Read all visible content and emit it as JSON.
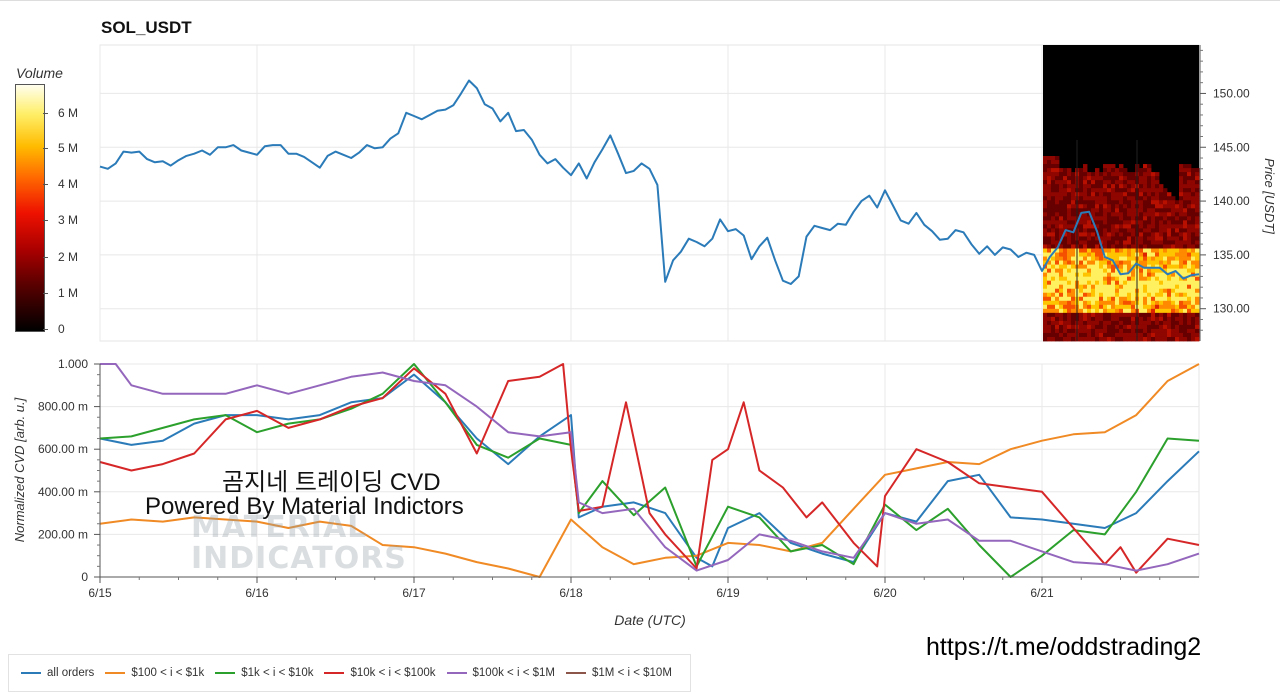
{
  "title": "SOL_USDT",
  "colorbar": {
    "label": "Volume",
    "ticks": [
      "6 M",
      "5 M",
      "4 M",
      "3 M",
      "2 M",
      "1 M",
      "0"
    ]
  },
  "watermark": {
    "line1": "곰지네 트레이딩 CVD",
    "line2": "Powered By Material Indictors",
    "logo_line1": "MATERIAL",
    "logo_line2": "INDICATORS"
  },
  "url": "https://t.me/oddstrading2",
  "chart_data": [
    {
      "type": "line",
      "name": "price",
      "ylabel": "Price [USDT]",
      "ylim": [
        127,
        154.5
      ],
      "yticks": [
        130,
        135,
        140,
        145,
        150
      ],
      "ytick_labels": [
        "130.00",
        "135.00",
        "140.00",
        "145.00",
        "150.00"
      ],
      "xlim": [
        0,
        7
      ],
      "xticks": [
        0,
        1,
        2,
        3,
        4,
        5,
        6
      ],
      "xtick_labels": [
        "6/15",
        "6/16",
        "6/17",
        "6/18",
        "6/19",
        "6/20",
        "6/21"
      ],
      "grid": true,
      "series": [
        {
          "color": "#2b7bb9",
          "x": [
            0.0,
            0.05,
            0.1,
            0.15,
            0.2,
            0.25,
            0.3,
            0.35,
            0.4,
            0.45,
            0.5,
            0.55,
            0.6,
            0.65,
            0.7,
            0.75,
            0.8,
            0.85,
            0.9,
            0.95,
            1.0,
            1.05,
            1.1,
            1.15,
            1.2,
            1.25,
            1.3,
            1.35,
            1.4,
            1.45,
            1.5,
            1.55,
            1.6,
            1.65,
            1.7,
            1.75,
            1.8,
            1.85,
            1.9,
            1.95,
            2.0,
            2.05,
            2.1,
            2.15,
            2.2,
            2.25,
            2.3,
            2.35,
            2.4,
            2.45,
            2.5,
            2.55,
            2.6,
            2.65,
            2.7,
            2.75,
            2.8,
            2.85,
            2.9,
            2.95,
            3.0,
            3.05,
            3.1,
            3.15,
            3.2,
            3.25,
            3.3,
            3.35,
            3.4,
            3.45,
            3.5,
            3.55,
            3.6,
            3.65,
            3.7,
            3.75,
            3.8,
            3.85,
            3.9,
            3.95,
            4.0,
            4.05,
            4.1,
            4.15,
            4.2,
            4.25,
            4.3,
            4.35,
            4.4,
            4.45,
            4.5,
            4.55,
            4.6,
            4.65,
            4.7,
            4.75,
            4.8,
            4.85,
            4.9,
            4.95,
            5.0,
            5.05,
            5.1,
            5.15,
            5.2,
            5.25,
            5.3,
            5.35,
            5.4,
            5.45,
            5.5,
            5.55,
            5.6,
            5.65,
            5.7,
            5.75,
            5.8,
            5.85,
            5.9,
            5.95,
            6.0,
            6.05,
            6.1,
            6.15,
            6.2,
            6.25,
            6.3,
            6.35,
            6.4,
            6.45,
            6.5,
            6.55,
            6.6,
            6.65,
            6.7,
            6.75,
            6.8,
            6.85,
            6.9,
            6.95,
            7.0
          ],
          "y": [
            143.2,
            143.0,
            143.5,
            144.6,
            144.5,
            144.6,
            143.9,
            143.6,
            143.7,
            143.3,
            143.8,
            144.2,
            144.4,
            144.7,
            144.3,
            145.0,
            145.0,
            145.2,
            144.7,
            144.5,
            144.3,
            145.1,
            145.2,
            145.2,
            144.4,
            144.4,
            144.1,
            143.6,
            143.1,
            144.2,
            144.6,
            144.3,
            144.0,
            144.5,
            145.2,
            144.9,
            145.0,
            145.8,
            146.3,
            148.2,
            147.9,
            147.6,
            148.0,
            148.4,
            148.5,
            148.9,
            150.0,
            151.2,
            150.5,
            149.0,
            148.6,
            147.4,
            148.2,
            146.5,
            146.6,
            145.7,
            144.3,
            143.5,
            143.9,
            143.1,
            142.4,
            143.5,
            142.1,
            143.6,
            144.8,
            146.1,
            144.4,
            142.6,
            142.8,
            143.5,
            143.0,
            141.5,
            132.5,
            134.5,
            135.3,
            136.5,
            136.2,
            135.8,
            136.5,
            138.3,
            137.2,
            137.4,
            136.8,
            134.6,
            135.8,
            136.6,
            134.5,
            132.6,
            132.3,
            133.0,
            136.7,
            137.7,
            137.5,
            137.3,
            137.9,
            137.8,
            139.0,
            140.0,
            140.5,
            139.4,
            141.0,
            139.6,
            138.2,
            137.9,
            138.9,
            137.8,
            137.2,
            136.4,
            136.5,
            137.3,
            137.1,
            136.0,
            135.1,
            135.8,
            135.0,
            135.7,
            135.5,
            134.8,
            135.2,
            135.0,
            133.5,
            134.8,
            135.7,
            137.3,
            137.1,
            138.9,
            139.0,
            137.2,
            134.8,
            134.5,
            133.2,
            133.3,
            134.2,
            133.8,
            133.8,
            133.8,
            133.2,
            133.5,
            132.8,
            133.1,
            133.2
          ]
        }
      ]
    },
    {
      "type": "line",
      "name": "cvd",
      "xlabel": "Date (UTC)",
      "ylabel": "Normalized CVD [arb. u.]",
      "ylim": [
        0,
        1
      ],
      "yticks": [
        0,
        0.2,
        0.4,
        0.6,
        0.8,
        1.0
      ],
      "ytick_labels": [
        "0",
        "200.00 m",
        "400.00 m",
        "600.00 m",
        "800.00 m",
        "1.000"
      ],
      "xlim": [
        0,
        7
      ],
      "xticks": [
        0,
        1,
        2,
        3,
        4,
        5,
        6
      ],
      "xtick_labels": [
        "6/15",
        "6/16",
        "6/17",
        "6/18",
        "6/19",
        "6/20",
        "6/21"
      ],
      "grid": true,
      "legend_position": "bottom-left",
      "series": [
        {
          "name": "all orders",
          "color": "#2b7bb9",
          "x": [
            0,
            0.2,
            0.4,
            0.6,
            0.8,
            1.0,
            1.2,
            1.4,
            1.6,
            1.8,
            2.0,
            2.2,
            2.4,
            2.6,
            2.8,
            3.0,
            3.05,
            3.2,
            3.4,
            3.6,
            3.8,
            3.9,
            4.0,
            4.2,
            4.4,
            4.6,
            4.8,
            5.0,
            5.2,
            5.4,
            5.6,
            5.8,
            6.0,
            6.2,
            6.4,
            6.6,
            6.8,
            7.0
          ],
          "y": [
            0.65,
            0.62,
            0.64,
            0.72,
            0.76,
            0.76,
            0.74,
            0.76,
            0.82,
            0.84,
            0.95,
            0.82,
            0.65,
            0.53,
            0.66,
            0.76,
            0.28,
            0.33,
            0.35,
            0.3,
            0.09,
            0.05,
            0.23,
            0.3,
            0.16,
            0.11,
            0.07,
            0.3,
            0.26,
            0.45,
            0.48,
            0.28,
            0.27,
            0.25,
            0.23,
            0.3,
            0.45,
            0.59
          ]
        },
        {
          "name": "$100 < i < $1k",
          "color": "#f08a24",
          "x": [
            0,
            0.2,
            0.4,
            0.6,
            0.8,
            1.0,
            1.2,
            1.4,
            1.6,
            1.8,
            2.0,
            2.2,
            2.4,
            2.6,
            2.8,
            3.0,
            3.2,
            3.4,
            3.6,
            3.8,
            4.0,
            4.2,
            4.4,
            4.6,
            4.8,
            5.0,
            5.2,
            5.4,
            5.6,
            5.8,
            6.0,
            6.2,
            6.4,
            6.6,
            6.8,
            7.0
          ],
          "y": [
            0.25,
            0.27,
            0.26,
            0.28,
            0.27,
            0.26,
            0.23,
            0.26,
            0.24,
            0.15,
            0.14,
            0.11,
            0.07,
            0.04,
            0.0,
            0.27,
            0.14,
            0.06,
            0.09,
            0.1,
            0.16,
            0.15,
            0.12,
            0.16,
            0.32,
            0.48,
            0.51,
            0.54,
            0.53,
            0.6,
            0.64,
            0.67,
            0.68,
            0.76,
            0.92,
            1.0
          ]
        },
        {
          "name": "$1k < i < $10k",
          "color": "#2ca02c",
          "x": [
            0,
            0.2,
            0.4,
            0.6,
            0.8,
            1.0,
            1.2,
            1.4,
            1.6,
            1.8,
            2.0,
            2.2,
            2.4,
            2.6,
            2.8,
            3.0,
            3.05,
            3.2,
            3.4,
            3.6,
            3.8,
            4.0,
            4.2,
            4.4,
            4.6,
            4.8,
            5.0,
            5.2,
            5.4,
            5.6,
            5.8,
            6.0,
            6.2,
            6.4,
            6.6,
            6.8,
            7.0
          ],
          "y": [
            0.65,
            0.66,
            0.7,
            0.74,
            0.76,
            0.68,
            0.72,
            0.74,
            0.79,
            0.86,
            1.0,
            0.82,
            0.62,
            0.56,
            0.65,
            0.62,
            0.3,
            0.45,
            0.29,
            0.42,
            0.05,
            0.33,
            0.28,
            0.12,
            0.15,
            0.06,
            0.34,
            0.22,
            0.32,
            0.15,
            0.0,
            0.1,
            0.22,
            0.2,
            0.4,
            0.65,
            0.64
          ]
        },
        {
          "name": "$10k < i < $100k",
          "color": "#d62728",
          "x": [
            0,
            0.2,
            0.4,
            0.6,
            0.8,
            1.0,
            1.2,
            1.4,
            1.6,
            1.8,
            2.0,
            2.2,
            2.4,
            2.6,
            2.8,
            2.95,
            3.0,
            3.05,
            3.2,
            3.35,
            3.5,
            3.6,
            3.8,
            3.9,
            4.0,
            4.1,
            4.2,
            4.35,
            4.5,
            4.6,
            4.8,
            4.95,
            5.0,
            5.2,
            5.4,
            5.6,
            5.8,
            6.0,
            6.2,
            6.4,
            6.5,
            6.6,
            6.8,
            7.0
          ],
          "y": [
            0.54,
            0.5,
            0.53,
            0.58,
            0.74,
            0.78,
            0.7,
            0.74,
            0.8,
            0.84,
            0.98,
            0.86,
            0.58,
            0.92,
            0.94,
            1.0,
            0.6,
            0.31,
            0.33,
            0.82,
            0.3,
            0.2,
            0.04,
            0.55,
            0.6,
            0.82,
            0.5,
            0.42,
            0.28,
            0.35,
            0.16,
            0.05,
            0.38,
            0.6,
            0.54,
            0.44,
            0.42,
            0.4,
            0.23,
            0.06,
            0.14,
            0.02,
            0.18,
            0.15
          ]
        },
        {
          "name": "$100k < i < $1M",
          "color": "#9467bd",
          "x": [
            0,
            0.1,
            0.2,
            0.4,
            0.6,
            0.8,
            1.0,
            1.2,
            1.4,
            1.6,
            1.8,
            2.0,
            2.2,
            2.4,
            2.6,
            2.8,
            3.0,
            3.05,
            3.2,
            3.4,
            3.6,
            3.8,
            4.0,
            4.2,
            4.4,
            4.6,
            4.8,
            5.0,
            5.2,
            5.4,
            5.6,
            5.8,
            6.0,
            6.2,
            6.4,
            6.6,
            6.8,
            7.0
          ],
          "y": [
            1.0,
            1.0,
            0.9,
            0.86,
            0.86,
            0.86,
            0.9,
            0.86,
            0.9,
            0.94,
            0.96,
            0.92,
            0.9,
            0.8,
            0.68,
            0.66,
            0.68,
            0.35,
            0.3,
            0.32,
            0.14,
            0.03,
            0.08,
            0.2,
            0.17,
            0.12,
            0.09,
            0.3,
            0.25,
            0.27,
            0.17,
            0.17,
            0.12,
            0.07,
            0.06,
            0.03,
            0.06,
            0.11
          ]
        },
        {
          "name": "$1M < i < $10M",
          "color": "#8c564b",
          "x": [],
          "y": []
        }
      ]
    }
  ]
}
